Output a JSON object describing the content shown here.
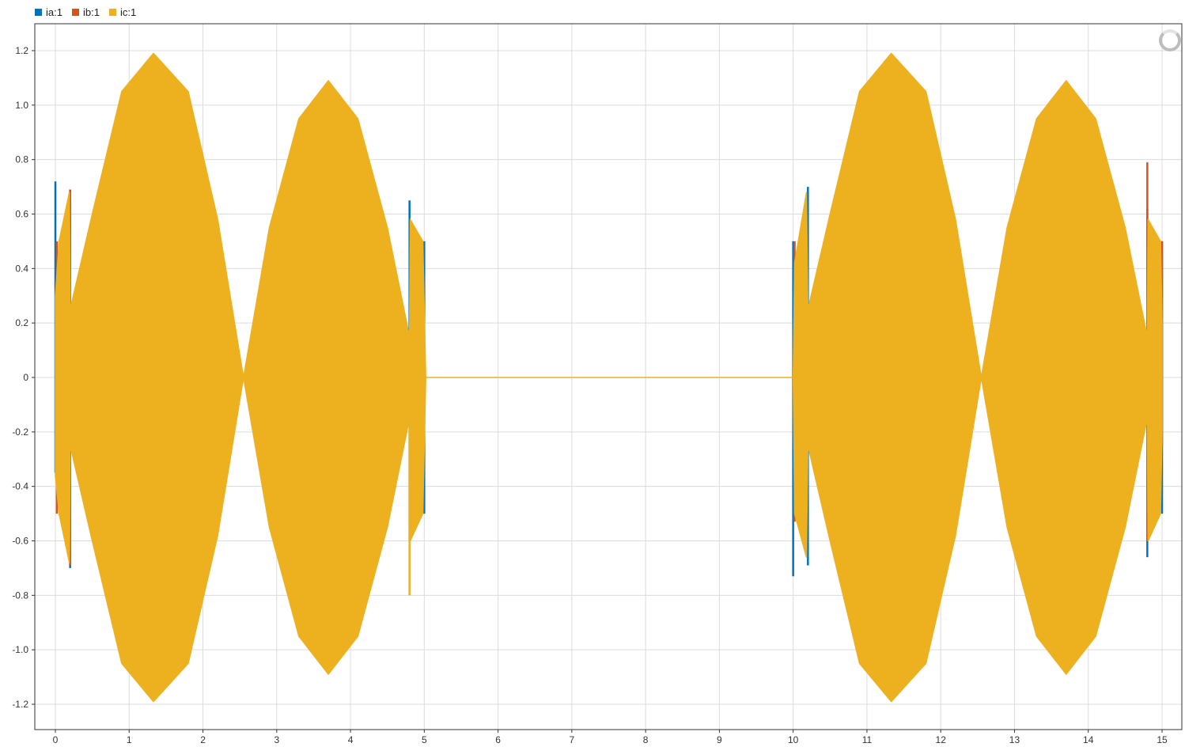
{
  "legend": [
    {
      "label": "ia:1",
      "color": "#0072BD"
    },
    {
      "label": "ib:1",
      "color": "#D95319"
    },
    {
      "label": "ic:1",
      "color": "#EDB120"
    }
  ],
  "toolbar": {
    "icon": "loading-spinner-icon"
  },
  "chart_data": {
    "type": "line",
    "title": "",
    "xlabel": "",
    "ylabel": "",
    "xlim": [
      -0.3,
      15.3
    ],
    "ylim": [
      -1.3,
      1.3
    ],
    "grid": true,
    "legend_position": "top-left",
    "x_ticks": [
      0,
      1,
      2,
      3,
      4,
      5,
      6,
      7,
      8,
      9,
      10,
      11,
      12,
      13,
      14,
      15
    ],
    "x_tick_labels": [
      "0",
      "1",
      "2",
      "3",
      "4",
      "5",
      "6",
      "7",
      "8",
      "9",
      "10",
      "11",
      "12",
      "13",
      "14",
      "15"
    ],
    "y_ticks": [
      1.2,
      1.0,
      0.8,
      0.6,
      0.4,
      0.2,
      0,
      -0.2,
      -0.4,
      -0.6,
      -0.8,
      -1.0,
      -1.2
    ],
    "y_tick_labels": [
      "1.2",
      "1.0",
      "0.8",
      "0.6",
      "0.4",
      "0.2",
      "0",
      "-0.2",
      "-0.4",
      "-0.6",
      "-0.8",
      "-1.0",
      "-1.2"
    ],
    "envelope_note_series": "ic:1",
    "series": [
      {
        "name": "ia:1",
        "color": "#0072BD",
        "spikes": [
          {
            "x": 0.0,
            "y_min": -0.35,
            "y_max": 0.72
          },
          {
            "x": 0.2,
            "y_min": -0.7,
            "y_max": 0.69
          },
          {
            "x": 4.8,
            "y_min": -0.6,
            "y_max": 0.65
          },
          {
            "x": 5.0,
            "y_min": -0.5,
            "y_max": 0.5
          },
          {
            "x": 10.0,
            "y_min": -0.73,
            "y_max": 0.5
          },
          {
            "x": 10.2,
            "y_min": -0.69,
            "y_max": 0.7
          },
          {
            "x": 14.8,
            "y_min": -0.66,
            "y_max": 0.62
          },
          {
            "x": 15.0,
            "y_min": -0.5,
            "y_max": 0.5
          }
        ]
      },
      {
        "name": "ib:1",
        "color": "#D95319",
        "spikes": [
          {
            "x": 0.02,
            "y_min": -0.5,
            "y_max": 0.5
          },
          {
            "x": 0.2,
            "y_min": -0.69,
            "y_max": 0.69
          },
          {
            "x": 4.98,
            "y_min": -0.5,
            "y_max": 0.5
          },
          {
            "x": 10.02,
            "y_min": -0.53,
            "y_max": 0.5
          },
          {
            "x": 14.8,
            "y_min": -0.6,
            "y_max": 0.79
          },
          {
            "x": 15.0,
            "y_min": -0.25,
            "y_max": 0.5
          }
        ]
      },
      {
        "name": "ic:1",
        "color": "#EDB120",
        "envelope": [
          {
            "x": 0.0,
            "y_min": -0.36,
            "y_max": 0.3
          },
          {
            "x": 0.05,
            "y_min": -0.5,
            "y_max": 0.5
          },
          {
            "x": 0.19,
            "y_min": -0.68,
            "y_max": 0.68
          },
          {
            "x": 0.2,
            "y_min": -0.25,
            "y_max": 0.25
          },
          {
            "x": 0.5,
            "y_min": -0.6,
            "y_max": 0.6
          },
          {
            "x": 0.9,
            "y_min": -1.05,
            "y_max": 1.05
          },
          {
            "x": 1.33,
            "y_min": -1.19,
            "y_max": 1.19
          },
          {
            "x": 1.8,
            "y_min": -1.05,
            "y_max": 1.05
          },
          {
            "x": 2.2,
            "y_min": -0.58,
            "y_max": 0.58
          },
          {
            "x": 2.55,
            "y_min": 0.0,
            "y_max": 0.0
          },
          {
            "x": 2.9,
            "y_min": -0.55,
            "y_max": 0.55
          },
          {
            "x": 3.3,
            "y_min": -0.95,
            "y_max": 0.95
          },
          {
            "x": 3.7,
            "y_min": -1.09,
            "y_max": 1.09
          },
          {
            "x": 4.1,
            "y_min": -0.95,
            "y_max": 0.95
          },
          {
            "x": 4.5,
            "y_min": -0.55,
            "y_max": 0.55
          },
          {
            "x": 4.8,
            "y_min": -0.15,
            "y_max": 0.15
          },
          {
            "x": 4.81,
            "y_min": -0.6,
            "y_max": 0.58
          },
          {
            "x": 4.98,
            "y_min": -0.5,
            "y_max": 0.5
          },
          {
            "x": 5.02,
            "y_min": 0.0,
            "y_max": 0.0
          },
          {
            "x": 10.0,
            "y_min": 0.0,
            "y_max": 0.0
          },
          {
            "x": 10.02,
            "y_min": -0.5,
            "y_max": 0.42
          },
          {
            "x": 10.18,
            "y_min": -0.66,
            "y_max": 0.68
          },
          {
            "x": 10.2,
            "y_min": -0.25,
            "y_max": 0.25
          },
          {
            "x": 10.5,
            "y_min": -0.6,
            "y_max": 0.6
          },
          {
            "x": 10.9,
            "y_min": -1.05,
            "y_max": 1.05
          },
          {
            "x": 11.33,
            "y_min": -1.19,
            "y_max": 1.19
          },
          {
            "x": 11.8,
            "y_min": -1.05,
            "y_max": 1.05
          },
          {
            "x": 12.2,
            "y_min": -0.58,
            "y_max": 0.58
          },
          {
            "x": 12.55,
            "y_min": 0.0,
            "y_max": 0.0
          },
          {
            "x": 12.9,
            "y_min": -0.55,
            "y_max": 0.55
          },
          {
            "x": 13.3,
            "y_min": -0.95,
            "y_max": 0.95
          },
          {
            "x": 13.7,
            "y_min": -1.09,
            "y_max": 1.09
          },
          {
            "x": 14.1,
            "y_min": -0.95,
            "y_max": 0.95
          },
          {
            "x": 14.5,
            "y_min": -0.55,
            "y_max": 0.55
          },
          {
            "x": 14.8,
            "y_min": -0.15,
            "y_max": 0.15
          },
          {
            "x": 14.81,
            "y_min": -0.6,
            "y_max": 0.58
          },
          {
            "x": 14.98,
            "y_min": -0.5,
            "y_max": 0.5
          },
          {
            "x": 15.0,
            "y_min": -0.2,
            "y_max": 0.2
          }
        ]
      }
    ],
    "extra_spikes": [
      {
        "series": "ic:1",
        "x": 4.8,
        "y_min": -0.8,
        "y_max": 0.0
      }
    ]
  }
}
